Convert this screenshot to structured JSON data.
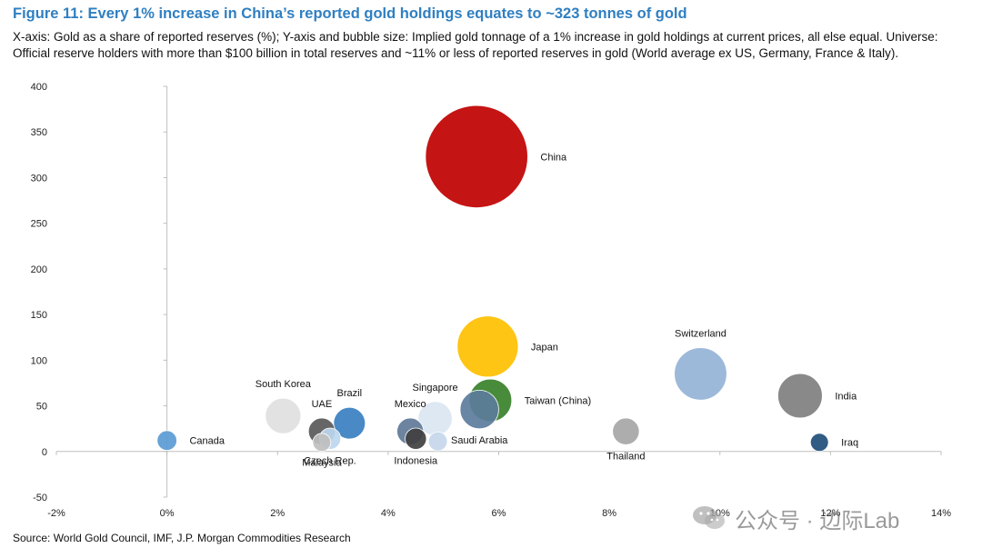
{
  "header": {
    "title": "Figure 11: Every 1% increase in China’s reported gold holdings equates to ~323 tonnes of gold",
    "subtitle": "X-axis: Gold as a share of reported reserves (%); Y-axis and bubble size: Implied gold tonnage of a 1% increase in gold holdings at current prices, all else equal. Universe: Official reserve holders with more than $100 billion in total reserves and ~11% or less of reported reserves in gold (World average ex US, Germany, France & Italy)."
  },
  "footer": {
    "source": "Source: World Gold Council, IMF, J.P. Morgan Commodities Research"
  },
  "watermark": {
    "text": "公众号 · 边际Lab",
    "icon": "wechat-icon"
  },
  "chart_data": {
    "type": "scatter",
    "subtype": "bubble",
    "title": "Figure 11: Every 1% increase in China’s reported gold holdings equates to ~323 tonnes of gold",
    "xlabel": "",
    "ylabel": "",
    "xlim": [
      -2,
      14
    ],
    "ylim": [
      -50,
      400
    ],
    "x_ticks": [
      -2,
      0,
      2,
      4,
      6,
      8,
      10,
      12,
      14
    ],
    "x_tick_labels": [
      "-2%",
      "0%",
      "2%",
      "4%",
      "6%",
      "8%",
      "10%",
      "12%",
      "14%"
    ],
    "y_ticks": [
      -50,
      0,
      50,
      100,
      150,
      200,
      250,
      300,
      350,
      400
    ],
    "y_tick_labels": [
      "-50",
      "0",
      "50",
      "100",
      "150",
      "200",
      "250",
      "300",
      "350",
      "400"
    ],
    "grid": false,
    "legend": "none",
    "points": [
      {
        "label": "Canada",
        "x": 0.0,
        "y": 12,
        "color": "#5b9bd5",
        "label_pos": "right"
      },
      {
        "label": "South Korea",
        "x": 2.1,
        "y": 39,
        "color": "#e0e0e0",
        "label_pos": "top"
      },
      {
        "label": "UAE",
        "x": 2.8,
        "y": 22,
        "color": "#595959",
        "label_pos": "top"
      },
      {
        "label": "Malaysia",
        "x": 2.8,
        "y": 10,
        "color": "#bfbfbf",
        "label_pos": "below"
      },
      {
        "label": "Czech Rep.",
        "x": 2.95,
        "y": 14,
        "color": "#bdd7ee",
        "label_pos": "below"
      },
      {
        "label": "Brazil",
        "x": 3.3,
        "y": 31,
        "color": "#3a7fc1",
        "label_pos": "top"
      },
      {
        "label": "Mexico",
        "x": 4.4,
        "y": 22,
        "color": "#5f7a98",
        "label_pos": "top"
      },
      {
        "label": "Indonesia",
        "x": 4.5,
        "y": 14,
        "color": "#404040",
        "label_pos": "below"
      },
      {
        "label": "Singapore",
        "x": 4.85,
        "y": 36,
        "color": "#dbe6f2",
        "label_pos": "top"
      },
      {
        "label": "Saudi Arabia",
        "x": 5.65,
        "y": 46,
        "color": "#5c7c9c",
        "label_pos": "below"
      },
      {
        "label": "",
        "x": 4.9,
        "y": 11,
        "color": "#c5d7ea",
        "label_pos": "none"
      },
      {
        "label": "China",
        "x": 5.6,
        "y": 323,
        "color": "#c00000",
        "label_pos": "right"
      },
      {
        "label": "Japan",
        "x": 5.8,
        "y": 115,
        "color": "#ffc000",
        "label_pos": "right"
      },
      {
        "label": "Taiwan (China)",
        "x": 5.85,
        "y": 56,
        "color": "#38812a",
        "label_pos": "right"
      },
      {
        "label": "Thailand",
        "x": 8.3,
        "y": 22,
        "color": "#a6a6a6",
        "label_pos": "below"
      },
      {
        "label": "Switzerland",
        "x": 9.65,
        "y": 85,
        "color": "#95b3d7",
        "label_pos": "top"
      },
      {
        "label": "India",
        "x": 11.45,
        "y": 61,
        "color": "#7f7f7f",
        "label_pos": "right"
      },
      {
        "label": "Iraq",
        "x": 11.8,
        "y": 10,
        "color": "#1f4e79",
        "label_pos": "right"
      }
    ]
  }
}
